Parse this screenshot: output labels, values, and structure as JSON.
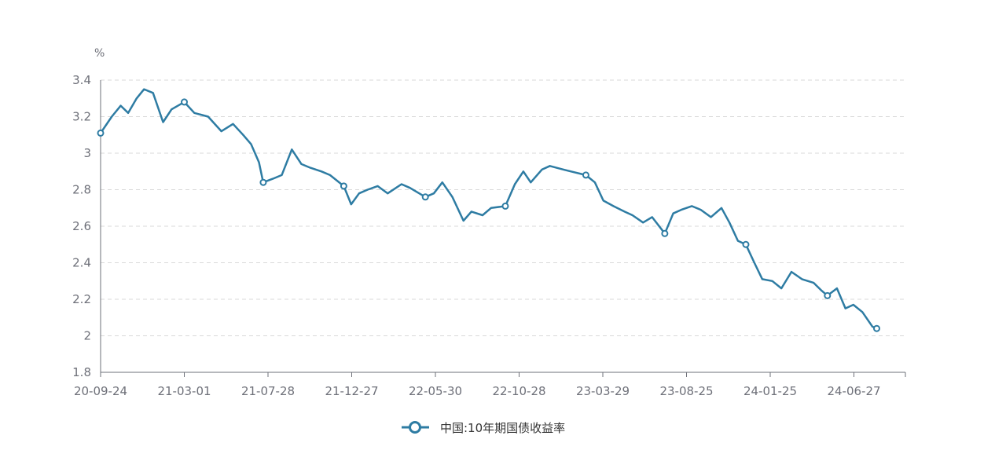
{
  "chart_data": {
    "type": "line",
    "unit": "%",
    "title": "",
    "xlabel": "",
    "ylabel": "%",
    "x_tick_labels": [
      "20-09-24",
      "21-03-01",
      "21-07-28",
      "21-12-27",
      "22-05-30",
      "22-10-28",
      "23-03-29",
      "23-08-25",
      "24-01-25",
      "24-06-27"
    ],
    "y_ticks": [
      "1.8",
      "2",
      "2.2",
      "2.4",
      "2.6",
      "2.8",
      "3",
      "3.2",
      "3.4"
    ],
    "ylim": [
      1.8,
      3.4
    ],
    "grid": true,
    "legend": "bottom-center",
    "colors": {
      "series": "#2e7ca3",
      "axis": "#6e7079",
      "grid": "#d9d9d9"
    },
    "series": [
      {
        "name": "中国:10年期国债收益率",
        "x": [
          "20-09-24",
          "20-10-15",
          "20-11-01",
          "20-11-15",
          "20-12-01",
          "20-12-15",
          "21-01-01",
          "21-01-20",
          "21-02-05",
          "21-03-01",
          "21-03-20",
          "21-04-15",
          "21-05-10",
          "21-06-01",
          "21-06-20",
          "21-07-05",
          "21-07-20",
          "21-07-28",
          "21-08-15",
          "21-09-01",
          "21-09-20",
          "21-10-08",
          "21-10-25",
          "21-11-15",
          "21-12-01",
          "21-12-27",
          "22-01-10",
          "22-01-25",
          "22-02-10",
          "22-03-01",
          "22-03-20",
          "22-04-15",
          "22-05-01",
          "22-05-30",
          "22-06-15",
          "22-07-01",
          "22-07-20",
          "22-08-10",
          "22-08-25",
          "22-09-15",
          "22-10-01",
          "22-10-28",
          "22-11-15",
          "22-12-01",
          "22-12-15",
          "23-01-05",
          "23-01-20",
          "23-02-15",
          "23-03-01",
          "23-03-29",
          "23-04-15",
          "23-05-01",
          "23-05-20",
          "23-06-10",
          "23-06-25",
          "23-07-15",
          "23-08-01",
          "23-08-25",
          "23-09-10",
          "23-09-25",
          "23-10-15",
          "23-11-01",
          "23-11-20",
          "23-12-10",
          "23-12-25",
          "24-01-10",
          "24-01-25",
          "24-02-10",
          "24-02-25",
          "24-03-15",
          "24-04-01",
          "24-04-20",
          "24-05-10",
          "24-06-01",
          "24-06-15",
          "24-06-27",
          "24-07-15",
          "24-07-31",
          "24-08-15",
          "24-09-01",
          "24-09-20",
          "24-09-28"
        ],
        "values": [
          3.11,
          3.2,
          3.26,
          3.22,
          3.3,
          3.35,
          3.33,
          3.17,
          3.24,
          3.28,
          3.22,
          3.2,
          3.12,
          3.16,
          3.1,
          3.05,
          2.95,
          2.84,
          2.86,
          2.88,
          3.02,
          2.94,
          2.92,
          2.9,
          2.88,
          2.82,
          2.72,
          2.78,
          2.8,
          2.82,
          2.78,
          2.83,
          2.81,
          2.76,
          2.78,
          2.84,
          2.76,
          2.63,
          2.68,
          2.66,
          2.7,
          2.71,
          2.83,
          2.9,
          2.84,
          2.91,
          2.93,
          2.91,
          2.9,
          2.88,
          2.84,
          2.74,
          2.71,
          2.68,
          2.66,
          2.62,
          2.65,
          2.56,
          2.67,
          2.69,
          2.71,
          2.69,
          2.65,
          2.7,
          2.62,
          2.52,
          2.5,
          2.4,
          2.31,
          2.3,
          2.26,
          2.35,
          2.31,
          2.29,
          2.25,
          2.22,
          2.26,
          2.15,
          2.17,
          2.13,
          2.05,
          2.04
        ]
      }
    ]
  }
}
